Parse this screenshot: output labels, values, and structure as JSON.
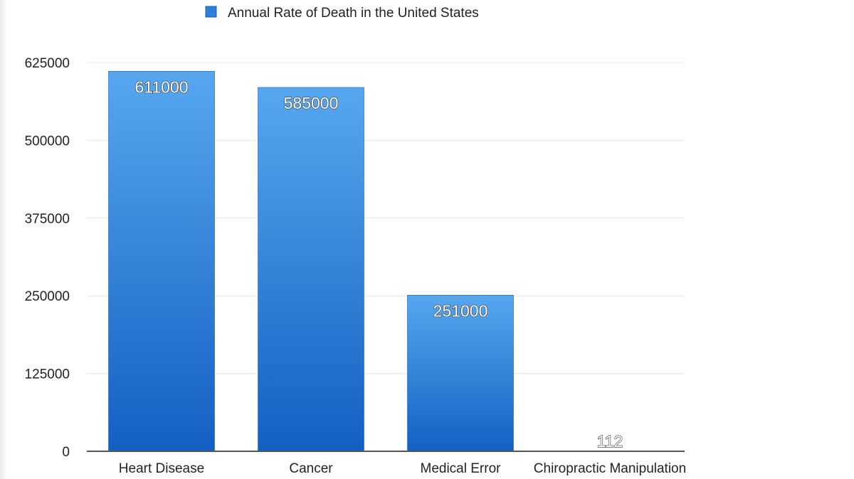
{
  "chart_data": {
    "type": "bar",
    "title": "",
    "legend": {
      "label": "Annual Rate of Death in the United States",
      "position": "top-center",
      "color": "#2f7fd9"
    },
    "categories": [
      "Heart Disease",
      "Cancer",
      "Medical Error",
      "Chiropractic Manipulation"
    ],
    "series": [
      {
        "name": "Annual Rate of Death in the United States",
        "values": [
          611000,
          585000,
          251000,
          112
        ],
        "labels": [
          "611000",
          "585000",
          "251000",
          "112"
        ]
      }
    ],
    "yticks": [
      0,
      125000,
      250000,
      375000,
      500000,
      625000
    ],
    "ylim": [
      0,
      625000
    ],
    "xlabel": "",
    "ylabel": "",
    "grid": true,
    "colors": {
      "bar_top": "#56a7ef",
      "bar_bottom": "#1360c2",
      "grid": "#e4e4e4",
      "axis": "#555555"
    }
  }
}
